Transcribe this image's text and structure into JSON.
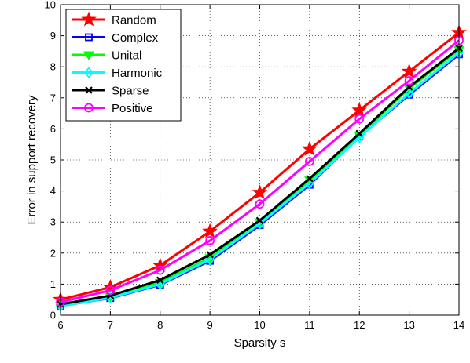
{
  "chart_data": {
    "type": "line",
    "title": "",
    "xlabel": "Sparsity s",
    "ylabel": "Error in support recovery",
    "xlim": [
      6,
      14
    ],
    "ylim": [
      0,
      10
    ],
    "x": [
      6,
      7,
      8,
      9,
      10,
      11,
      12,
      13,
      14
    ],
    "xticks": [
      "6",
      "7",
      "8",
      "9",
      "10",
      "11",
      "12",
      "13",
      "14"
    ],
    "yticks": [
      "0",
      "1",
      "2",
      "3",
      "4",
      "5",
      "6",
      "7",
      "8",
      "9",
      "10"
    ],
    "grid": true,
    "legend_position": "top-left",
    "series": [
      {
        "name": "Random",
        "color": "#ff0000",
        "marker": "star",
        "values": [
          0.5,
          0.9,
          1.6,
          2.7,
          3.95,
          5.35,
          6.6,
          7.85,
          9.1
        ]
      },
      {
        "name": "Complex",
        "color": "#0000ff",
        "marker": "square",
        "values": [
          0.3,
          0.55,
          0.98,
          1.75,
          2.9,
          4.2,
          5.75,
          7.1,
          8.4
        ]
      },
      {
        "name": "Unital",
        "color": "#00ff00",
        "marker": "triangle-down",
        "values": [
          0.32,
          0.6,
          1.05,
          1.85,
          3.0,
          4.35,
          5.8,
          7.3,
          8.55
        ]
      },
      {
        "name": "Harmonic",
        "color": "#00ffff",
        "marker": "diamond",
        "values": [
          0.3,
          0.56,
          1.0,
          1.8,
          2.95,
          4.25,
          5.72,
          7.15,
          8.45
        ]
      },
      {
        "name": "Sparse",
        "color": "#000000",
        "marker": "x",
        "values": [
          0.35,
          0.63,
          1.13,
          1.95,
          3.05,
          4.4,
          5.85,
          7.35,
          8.6
        ]
      },
      {
        "name": "Positive",
        "color": "#ff00ff",
        "marker": "circle",
        "values": [
          0.42,
          0.8,
          1.45,
          2.4,
          3.58,
          4.95,
          6.32,
          7.55,
          8.85
        ]
      }
    ]
  }
}
